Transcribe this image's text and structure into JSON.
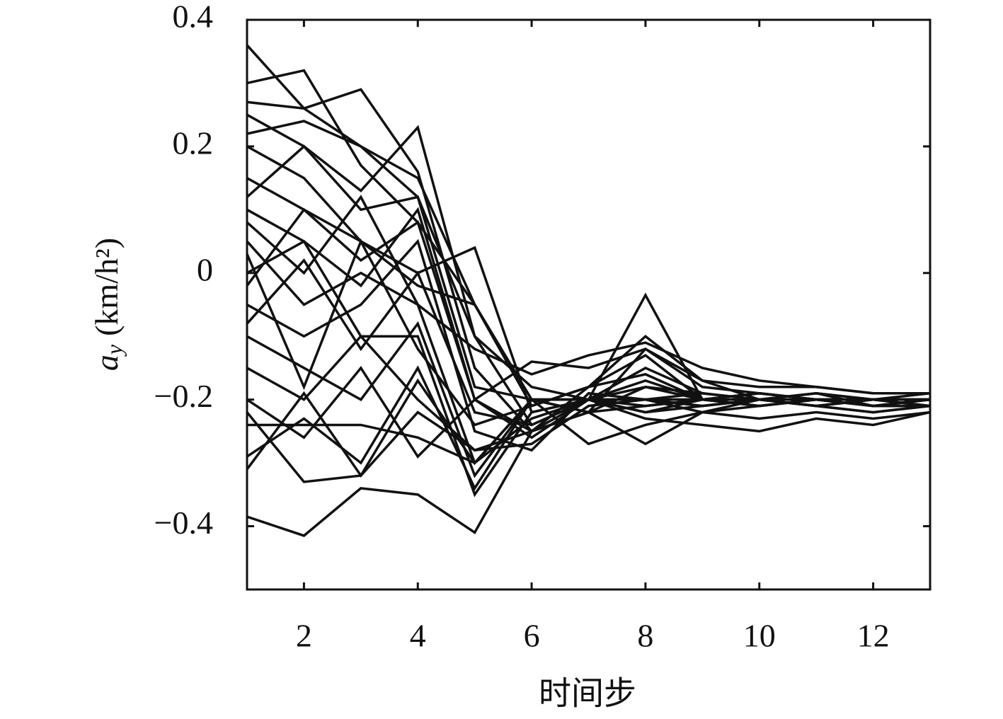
{
  "chart_data": {
    "type": "line",
    "xlabel": "时间步",
    "ylabel": {
      "symbol": "a",
      "subscript": "y",
      "unit": "(km/h²)"
    },
    "x": [
      1,
      2,
      3,
      4,
      5,
      6,
      7,
      8,
      9,
      10,
      11,
      12,
      13
    ],
    "xlim": [
      1,
      13
    ],
    "xticks": [
      2,
      4,
      6,
      8,
      10,
      12
    ],
    "ylim": [
      -0.5,
      0.4
    ],
    "yticks": [
      0.4,
      0.2,
      0,
      {
        "value": -0.2,
        "label": "−0.2"
      },
      {
        "value": -0.4,
        "label": "−0.4"
      }
    ],
    "color": "#111111",
    "series": [
      {
        "values": [
          0.36,
          0.26,
          0.2,
          0.12,
          -0.1,
          -0.18,
          -0.2,
          -0.15,
          -0.19,
          -0.2,
          -0.19,
          -0.2,
          -0.2
        ]
      },
      {
        "values": [
          0.3,
          0.32,
          0.17,
          0.08,
          -0.05,
          -0.2,
          -0.22,
          -0.12,
          -0.18,
          -0.19,
          -0.2,
          -0.21,
          -0.2
        ]
      },
      {
        "values": [
          0.27,
          0.26,
          0.29,
          0.16,
          -0.15,
          -0.25,
          -0.18,
          -0.13,
          -0.2,
          -0.19,
          -0.2,
          -0.2,
          -0.21
        ]
      },
      {
        "values": [
          0.25,
          0.2,
          0.13,
          0.23,
          -0.1,
          -0.24,
          -0.2,
          -0.2,
          -0.19,
          -0.2,
          -0.21,
          -0.2,
          -0.2
        ]
      },
      {
        "values": [
          0.22,
          0.24,
          0.2,
          0.15,
          -0.05,
          -0.21,
          -0.18,
          -0.1,
          -0.17,
          -0.2,
          -0.19,
          -0.21,
          -0.21
        ]
      },
      {
        "values": [
          0.15,
          0.1,
          0.05,
          0.0,
          0.04,
          -0.22,
          -0.2,
          -0.17,
          -0.2,
          -0.19,
          -0.2,
          -0.2,
          -0.2
        ]
      },
      {
        "values": [
          0.1,
          0.05,
          -0.02,
          0.1,
          -0.2,
          -0.25,
          -0.2,
          -0.21,
          -0.2,
          -0.2,
          -0.21,
          -0.22,
          -0.21
        ]
      },
      {
        "values": [
          0.05,
          -0.05,
          0.0,
          -0.05,
          -0.3,
          -0.2,
          -0.2,
          -0.2,
          -0.22,
          -0.21,
          -0.2,
          -0.21,
          -0.2
        ]
      },
      {
        "values": [
          0.0,
          0.05,
          -0.1,
          -0.1,
          -0.35,
          -0.22,
          -0.2,
          -0.22,
          -0.2,
          -0.21,
          -0.2,
          -0.2,
          -0.21
        ]
      },
      {
        "values": [
          -0.05,
          -0.1,
          -0.05,
          0.05,
          -0.25,
          -0.28,
          -0.19,
          -0.2,
          -0.21,
          -0.2,
          -0.21,
          -0.2,
          -0.2
        ]
      },
      {
        "values": [
          -0.1,
          -0.15,
          -0.2,
          -0.08,
          -0.32,
          -0.2,
          -0.27,
          -0.24,
          -0.22,
          -0.23,
          -0.22,
          -0.23,
          -0.22
        ]
      },
      {
        "values": [
          -0.15,
          -0.2,
          -0.1,
          -0.2,
          -0.28,
          -0.25,
          -0.22,
          -0.27,
          -0.22,
          -0.2,
          -0.21,
          -0.22,
          -0.21
        ]
      },
      {
        "values": [
          -0.2,
          -0.26,
          -0.15,
          -0.29,
          -0.2,
          -0.26,
          -0.2,
          -0.23,
          -0.24,
          -0.25,
          -0.23,
          -0.24,
          -0.22
        ]
      },
      {
        "values": [
          -0.24,
          -0.24,
          -0.24,
          -0.26,
          -0.3,
          -0.23,
          -0.2,
          -0.22,
          -0.21,
          -0.2,
          -0.2,
          -0.21,
          -0.2
        ]
      },
      {
        "values": [
          -0.29,
          -0.23,
          -0.3,
          -0.15,
          -0.34,
          -0.2,
          -0.22,
          -0.18,
          -0.2,
          -0.19,
          -0.2,
          -0.2,
          -0.21
        ]
      },
      {
        "values": [
          -0.31,
          -0.19,
          -0.32,
          -0.22,
          -0.28,
          -0.27,
          -0.21,
          -0.2,
          -0.21,
          -0.2,
          -0.2,
          -0.21,
          -0.2
        ]
      },
      {
        "values": [
          -0.385,
          -0.415,
          -0.34,
          -0.35,
          -0.41,
          -0.25,
          -0.22,
          -0.21,
          -0.2,
          -0.2,
          -0.21,
          -0.2,
          -0.2
        ]
      },
      {
        "values": [
          -0.22,
          -0.33,
          -0.32,
          -0.17,
          -0.3,
          -0.2,
          -0.2,
          -0.2,
          -0.2,
          -0.21,
          -0.2,
          -0.21,
          -0.21
        ]
      },
      {
        "values": [
          0.2,
          0.15,
          0.05,
          -0.02,
          -0.05,
          -0.2,
          -0.2,
          -0.035,
          -0.2,
          -0.19,
          -0.2,
          -0.2,
          -0.2
        ]
      },
      {
        "values": [
          0.08,
          0.0,
          0.12,
          -0.05,
          -0.12,
          -0.16,
          -0.13,
          -0.11,
          -0.15,
          -0.17,
          -0.18,
          -0.19,
          -0.19
        ]
      },
      {
        "values": [
          -0.02,
          0.1,
          0.02,
          0.08,
          -0.2,
          -0.14,
          -0.15,
          -0.12,
          -0.17,
          -0.18,
          -0.18,
          -0.19,
          -0.19
        ]
      },
      {
        "values": [
          0.12,
          0.2,
          0.1,
          0.12,
          -0.18,
          -0.2,
          -0.2,
          -0.18,
          -0.19,
          -0.2,
          -0.2,
          -0.2,
          -0.2
        ]
      },
      {
        "values": [
          -0.08,
          0.02,
          -0.12,
          0.0,
          -0.22,
          -0.24,
          -0.2,
          -0.2,
          -0.2,
          -0.2,
          -0.19,
          -0.2,
          -0.2
        ]
      },
      {
        "values": [
          0.03,
          -0.18,
          0.05,
          -0.12,
          -0.24,
          -0.21,
          -0.18,
          -0.16,
          -0.2,
          -0.21,
          -0.2,
          -0.2,
          -0.19
        ]
      }
    ]
  }
}
